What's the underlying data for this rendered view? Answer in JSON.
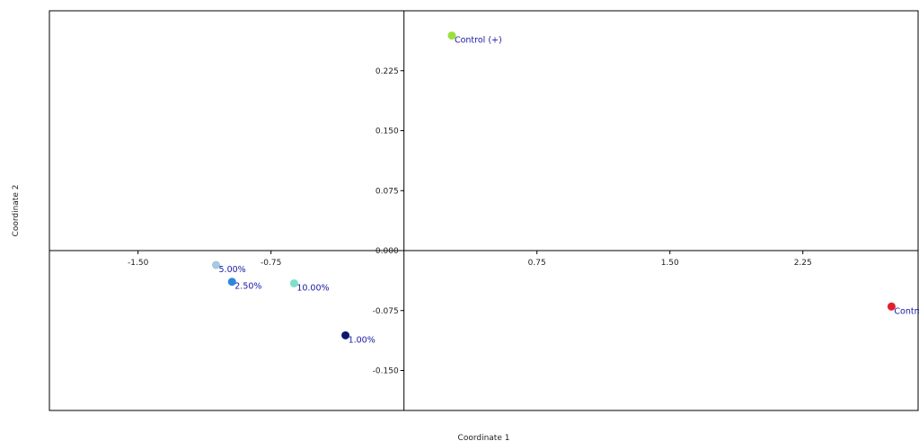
{
  "chart_data": {
    "type": "scatter",
    "xlabel": "Coordinate 1",
    "ylabel": "Coordinate 2",
    "xlim": [
      -2.0,
      2.9
    ],
    "ylim": [
      -0.2,
      0.3
    ],
    "xticks": [
      -1.5,
      -0.75,
      0.75,
      1.5,
      2.25
    ],
    "xtick_labels": [
      "-1.50",
      "-0.75",
      "0.75",
      "1.50",
      "2.25"
    ],
    "yticks": [
      0.225,
      0.15,
      0.075,
      0.0,
      -0.075,
      -0.15
    ],
    "ytick_labels": [
      "0.225",
      "0.150",
      "0.075",
      "0.000",
      "-0.075",
      "-0.150"
    ],
    "grid": false,
    "label_color": "#1a1aa6",
    "points": [
      {
        "label": "Control (+)",
        "x": 0.27,
        "y": 0.269,
        "color": "#9be03a"
      },
      {
        "label": "5.00%",
        "x": -1.06,
        "y": -0.018,
        "color": "#a6c8e0"
      },
      {
        "label": "2.50%",
        "x": -0.97,
        "y": -0.039,
        "color": "#2e86de"
      },
      {
        "label": "10.00%",
        "x": -0.62,
        "y": -0.041,
        "color": "#7ee0c8"
      },
      {
        "label": "1.00%",
        "x": -0.33,
        "y": -0.106,
        "color": "#0d1770"
      },
      {
        "label": "Control",
        "x": 2.75,
        "y": -0.07,
        "color": "#e0202e"
      }
    ]
  }
}
